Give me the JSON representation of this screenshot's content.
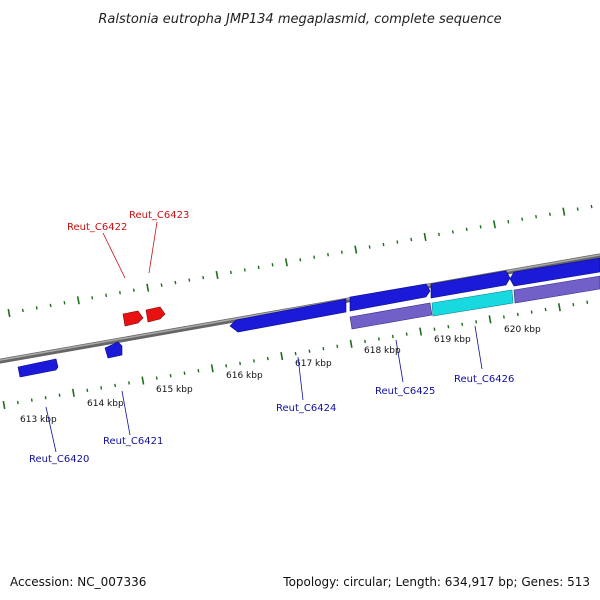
{
  "title": "Ralstonia eutropha JMP134 megaplasmid, complete sequence",
  "footer": {
    "accession": "Accession: NC_007336",
    "summary": "Topology: circular; Length: 634,917 bp; Genes: 513"
  },
  "colors": {
    "tick": "#1e6e1e",
    "backbone": "#888888",
    "gene_blue": "#1a1ad8",
    "gene_red": "#e81010",
    "gene_purple": "#7060c8",
    "gene_cyan": "#18d8e0",
    "label_blue": "#1010a0",
    "label_red": "#c81010"
  },
  "scale_labels": [
    "613 kbp",
    "614 kbp",
    "615 kbp",
    "616 kbp",
    "617 kbp",
    "618 kbp",
    "619 kbp",
    "620 kbp"
  ],
  "gene_labels": [
    {
      "name": "Reut_C6420",
      "color": "blue"
    },
    {
      "name": "Reut_C6421",
      "color": "blue"
    },
    {
      "name": "Reut_C6422",
      "color": "red"
    },
    {
      "name": "Reut_C6423",
      "color": "red"
    },
    {
      "name": "Reut_C6424",
      "color": "blue"
    },
    {
      "name": "Reut_C6425",
      "color": "blue"
    },
    {
      "name": "Reut_C6426",
      "color": "blue"
    }
  ]
}
